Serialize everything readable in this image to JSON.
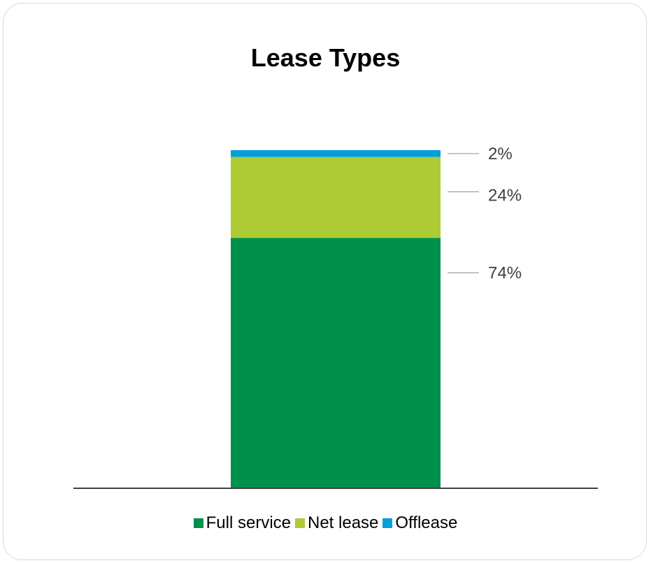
{
  "chart_data": {
    "type": "bar",
    "stacked": true,
    "title": "Lease Types",
    "categories": [
      ""
    ],
    "series": [
      {
        "name": "Full service",
        "values": [
          74
        ],
        "label": "74%",
        "color": "#00904C"
      },
      {
        "name": "Net lease",
        "values": [
          24
        ],
        "label": "24%",
        "color": "#AECB36"
      },
      {
        "name": "Offlease",
        "values": [
          2
        ],
        "label": "2%",
        "color": "#009FDA"
      }
    ],
    "ylim": [
      0,
      100
    ],
    "legend": "bottom",
    "grid": false
  }
}
